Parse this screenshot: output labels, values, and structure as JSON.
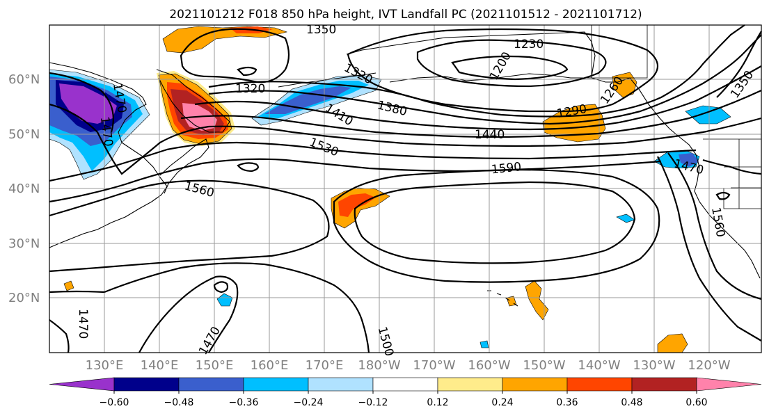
{
  "title": "2021101212 F018 850 hPa height, IVT Landfall PC (2021101512 - 2021101712)",
  "lat_labels": [
    "60°N",
    "50°N",
    "40°N",
    "30°N",
    "20°N"
  ],
  "lon_labels": [
    "130°E",
    "140°E",
    "150°E",
    "160°E",
    "170°E",
    "180°W",
    "170°W",
    "160°W",
    "150°W",
    "140°W",
    "130°W",
    "120°W"
  ],
  "contour_labels": [
    "1350",
    "1230",
    "1200",
    "1320",
    "1320",
    "1470",
    "1470",
    "1410",
    "1380",
    "1290",
    "1260",
    "1350",
    "1440",
    "1530",
    "1590",
    "1560",
    "1470",
    "1560",
    "1470",
    "1500",
    "1470"
  ],
  "colorbar": {
    "ticks": [
      "−0.60",
      "−0.48",
      "−0.36",
      "−0.24",
      "−0.12",
      "0.12",
      "0.24",
      "0.36",
      "0.48",
      "0.60"
    ],
    "colors": [
      "#9932cc",
      "#00008b",
      "#3a5fcd",
      "#00bfff",
      "#b0e2ff",
      "#ffffff",
      "#ffec8b",
      "#ffa500",
      "#ff4500",
      "#b22222",
      "#ff82ab"
    ]
  },
  "map_colors": {
    "very_neg": "#9932cc",
    "strong_neg": "#00008b",
    "neg": "#3a5fcd",
    "mid_neg": "#00bfff",
    "weak_neg": "#b0e2ff",
    "weak_pos": "#ffec8b",
    "pos": "#ffa500",
    "mid_pos": "#ff4500",
    "strong_pos": "#b22222",
    "very_pos": "#ff82ab"
  }
}
